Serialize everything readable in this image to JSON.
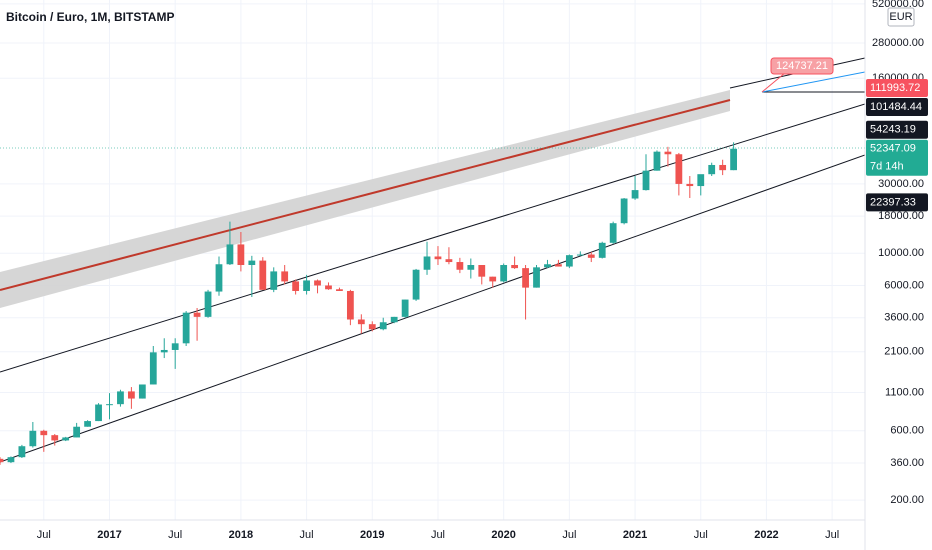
{
  "chart_data": {
    "type": "candlestick",
    "title": "Bitcoin / Euro, 1M, BITSTAMP",
    "currency": "EUR",
    "log_scale": true,
    "grid": true,
    "up_color": "#26a69a",
    "down_color": "#ef5350",
    "x": [
      "2016-03",
      "2016-04",
      "2016-05",
      "2016-06",
      "2016-07",
      "2016-08",
      "2016-09",
      "2016-10",
      "2016-11",
      "2016-12",
      "2017-01",
      "2017-02",
      "2017-03",
      "2017-04",
      "2017-05",
      "2017-06",
      "2017-07",
      "2017-08",
      "2017-09",
      "2017-10",
      "2017-11",
      "2017-12",
      "2018-01",
      "2018-02",
      "2018-03",
      "2018-04",
      "2018-05",
      "2018-06",
      "2018-07",
      "2018-08",
      "2018-09",
      "2018-10",
      "2018-11",
      "2018-12",
      "2019-01",
      "2019-02",
      "2019-03",
      "2019-04",
      "2019-05",
      "2019-06",
      "2019-07",
      "2019-08",
      "2019-09",
      "2019-10",
      "2019-11",
      "2019-12",
      "2020-01",
      "2020-02",
      "2020-03",
      "2020-04",
      "2020-05",
      "2020-06",
      "2020-07",
      "2020-08",
      "2020-09",
      "2020-10",
      "2020-11",
      "2020-12",
      "2021-01",
      "2021-02",
      "2021-03",
      "2021-04",
      "2021-05",
      "2021-06",
      "2021-07",
      "2021-08",
      "2021-09",
      "2021-10"
    ],
    "open": [
      385,
      365,
      395,
      470,
      600,
      560,
      515,
      540,
      640,
      700,
      910,
      915,
      1120,
      1000,
      1250,
      2080,
      2160,
      2400,
      3900,
      3650,
      5450,
      8400,
      11500,
      8300,
      8900,
      5600,
      7500,
      6400,
      5500,
      6500,
      6000,
      5650,
      5500,
      3500,
      3250,
      3000,
      3350,
      3650,
      4800,
      7700,
      9500,
      9100,
      8700,
      7700,
      8300,
      6900,
      6400,
      8300,
      7900,
      5800,
      8000,
      8400,
      8100,
      9700,
      9800,
      9300,
      11800,
      16100,
      23800,
      27200,
      37000,
      50000,
      48000,
      30000,
      29000,
      35000,
      40500,
      37300
    ],
    "high": [
      395,
      400,
      480,
      690,
      610,
      570,
      545,
      680,
      710,
      930,
      1090,
      1150,
      1200,
      1250,
      2300,
      2600,
      2600,
      4000,
      4200,
      5600,
      9500,
      16500,
      14000,
      9600,
      9400,
      8000,
      8300,
      6600,
      7100,
      6600,
      6300,
      5800,
      5600,
      3800,
      3400,
      3600,
      3650,
      4800,
      7800,
      12000,
      11200,
      11000,
      9300,
      9200,
      8300,
      6900,
      8500,
      9500,
      8300,
      8300,
      9000,
      9000,
      9800,
      10300,
      10200,
      12000,
      16500,
      24000,
      34000,
      48000,
      51000,
      54000,
      49000,
      34000,
      34500,
      42000,
      44000,
      58000
    ],
    "low": [
      350,
      360,
      390,
      460,
      430,
      475,
      510,
      540,
      640,
      700,
      720,
      880,
      850,
      1000,
      1250,
      1900,
      1600,
      2300,
      2500,
      3600,
      5100,
      8300,
      7500,
      5000,
      6000,
      5400,
      6100,
      5200,
      5200,
      5300,
      5600,
      5500,
      3200,
      2800,
      2900,
      2950,
      3300,
      3600,
      4700,
      7100,
      8300,
      8400,
      7300,
      6700,
      6100,
      5800,
      6300,
      7800,
      3500,
      5800,
      7900,
      8100,
      7900,
      9600,
      8700,
      9200,
      11600,
      15800,
      23300,
      27000,
      37000,
      39500,
      25000,
      24000,
      25000,
      34000,
      34500,
      37300
    ],
    "close": [
      365,
      395,
      470,
      600,
      560,
      515,
      540,
      640,
      700,
      910,
      915,
      1120,
      1000,
      1250,
      2080,
      2160,
      2400,
      3900,
      3650,
      5450,
      8400,
      11500,
      8300,
      8900,
      5600,
      7500,
      6400,
      5500,
      6500,
      6000,
      5650,
      5500,
      3500,
      3250,
      3000,
      3350,
      3650,
      4800,
      7700,
      9500,
      9100,
      8700,
      7700,
      8300,
      6900,
      6400,
      8300,
      7900,
      5800,
      8000,
      8400,
      8100,
      9700,
      9800,
      9300,
      11800,
      16100,
      23800,
      27200,
      37000,
      50000,
      48000,
      30000,
      29000,
      35000,
      40500,
      37300,
      52347.09
    ],
    "xlim": [
      "2016-03",
      "2022-10"
    ],
    "xticks": [
      {
        "value": "2016-07",
        "label": "Jul"
      },
      {
        "value": "2017-01",
        "label": "2017"
      },
      {
        "value": "2017-07",
        "label": "Jul"
      },
      {
        "value": "2018-01",
        "label": "2018"
      },
      {
        "value": "2018-07",
        "label": "Jul"
      },
      {
        "value": "2019-01",
        "label": "2019"
      },
      {
        "value": "2019-07",
        "label": "Jul"
      },
      {
        "value": "2020-01",
        "label": "2020"
      },
      {
        "value": "2020-07",
        "label": "Jul"
      },
      {
        "value": "2021-01",
        "label": "2021"
      },
      {
        "value": "2021-07",
        "label": "Jul"
      },
      {
        "value": "2022-01",
        "label": "2022"
      },
      {
        "value": "2022-07",
        "label": "Jul"
      }
    ],
    "ylim": [
      146,
      553000
    ],
    "yticks": [
      {
        "value": 520000,
        "label": "520000.00"
      },
      {
        "value": 280000,
        "label": "280000.00"
      },
      {
        "value": 160000,
        "label": "160000.00"
      },
      {
        "value": 30000,
        "label": "30000.00"
      },
      {
        "value": 18000,
        "label": "18000.00"
      },
      {
        "value": 10000,
        "label": "10000.00"
      },
      {
        "value": 6000,
        "label": "6000.00"
      },
      {
        "value": 3600,
        "label": "3600.00"
      },
      {
        "value": 2100,
        "label": "2100.00"
      },
      {
        "value": 1100,
        "label": "1100.00"
      },
      {
        "value": 600,
        "label": "600.00"
      },
      {
        "value": 360,
        "label": "360.00"
      },
      {
        "value": 200,
        "label": "200.00"
      }
    ],
    "price_labels": [
      {
        "value": 111993.72,
        "color": "#f7525f"
      },
      {
        "value": 101484.44,
        "color": "#131722"
      },
      {
        "value": 54243.19,
        "color": "#131722"
      },
      {
        "value": 52347.09,
        "color": "#22ab94",
        "countdown": "7d 14h"
      },
      {
        "value": 22397.33,
        "color": "#131722"
      }
    ],
    "callout": {
      "value": 124737.21,
      "color": "#f7a1a5"
    }
  }
}
